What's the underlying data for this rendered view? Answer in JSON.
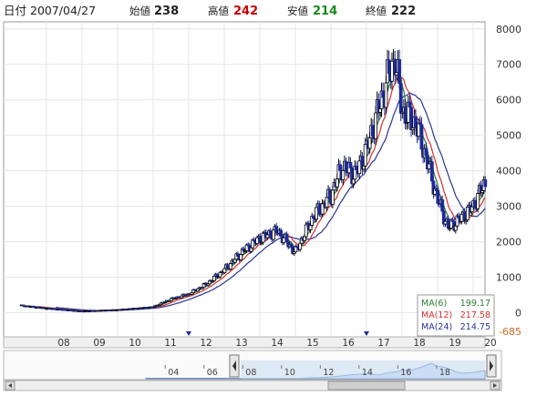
{
  "header": {
    "date_label": "日付",
    "date_value": "2007/04/27",
    "items": [
      {
        "label": "始値",
        "value": "238",
        "color": "#222222"
      },
      {
        "label": "高値",
        "value": "242",
        "color": "#cc0000"
      },
      {
        "label": "安値",
        "value": "214",
        "color": "#1a8a1a"
      },
      {
        "label": "終値",
        "value": "222",
        "color": "#222222"
      }
    ]
  },
  "colors": {
    "candle_up": "#000000",
    "candle_down": "#1c2a9a",
    "ma6": "#2e7d32",
    "ma12": "#d32f2f",
    "ma24": "#283593",
    "grid": "#e6e6e6",
    "navigator_fill": "#cfe0f5",
    "navigator_line": "#6a8fc8"
  },
  "legend": [
    {
      "name": "MA(6)",
      "value": "199.17",
      "color": "#2e7d32"
    },
    {
      "name": "MA(12)",
      "value": "217.58",
      "color": "#d32f2f"
    },
    {
      "name": "MA(24)",
      "value": "214.75",
      "color": "#283593"
    }
  ],
  "chart_data": {
    "type": "candlestick",
    "grid": true,
    "ylim": [
      -685,
      8200
    ],
    "yticks": [
      "8000",
      "7000",
      "6000",
      "5000",
      "4000",
      "3000",
      "2000",
      "1000",
      "0"
    ],
    "ymin_label": "-685",
    "xticks": [
      "08",
      "09",
      "10",
      "11",
      "12",
      "13",
      "14",
      "15",
      "16",
      "17",
      "18",
      "19",
      "20"
    ],
    "markers": [
      "12",
      "17"
    ],
    "price_path": [
      {
        "t": 2007.3,
        "p": 200
      },
      {
        "t": 2008.0,
        "p": 120
      },
      {
        "t": 2009.0,
        "p": 40
      },
      {
        "t": 2010.0,
        "p": 80
      },
      {
        "t": 2011.0,
        "p": 160
      },
      {
        "t": 2011.5,
        "p": 380
      },
      {
        "t": 2012.0,
        "p": 520
      },
      {
        "t": 2012.5,
        "p": 800
      },
      {
        "t": 2013.0,
        "p": 1200
      },
      {
        "t": 2013.5,
        "p": 1700
      },
      {
        "t": 2014.0,
        "p": 2100
      },
      {
        "t": 2014.5,
        "p": 2300
      },
      {
        "t": 2015.0,
        "p": 1700
      },
      {
        "t": 2015.5,
        "p": 2700
      },
      {
        "t": 2016.0,
        "p": 3300
      },
      {
        "t": 2016.3,
        "p": 4100
      },
      {
        "t": 2016.7,
        "p": 3900
      },
      {
        "t": 2017.0,
        "p": 4600
      },
      {
        "t": 2017.3,
        "p": 5600
      },
      {
        "t": 2017.6,
        "p": 6600
      },
      {
        "t": 2017.8,
        "p": 7200
      },
      {
        "t": 2018.0,
        "p": 5700
      },
      {
        "t": 2018.4,
        "p": 5300
      },
      {
        "t": 2018.7,
        "p": 4300
      },
      {
        "t": 2019.0,
        "p": 3200
      },
      {
        "t": 2019.3,
        "p": 2400
      },
      {
        "t": 2019.7,
        "p": 2700
      },
      {
        "t": 2020.0,
        "p": 3000
      },
      {
        "t": 2020.3,
        "p": 3600
      }
    ]
  },
  "navigator": {
    "labels": [
      "04",
      "06",
      "08",
      "10",
      "12",
      "14",
      "16",
      "18"
    ]
  }
}
